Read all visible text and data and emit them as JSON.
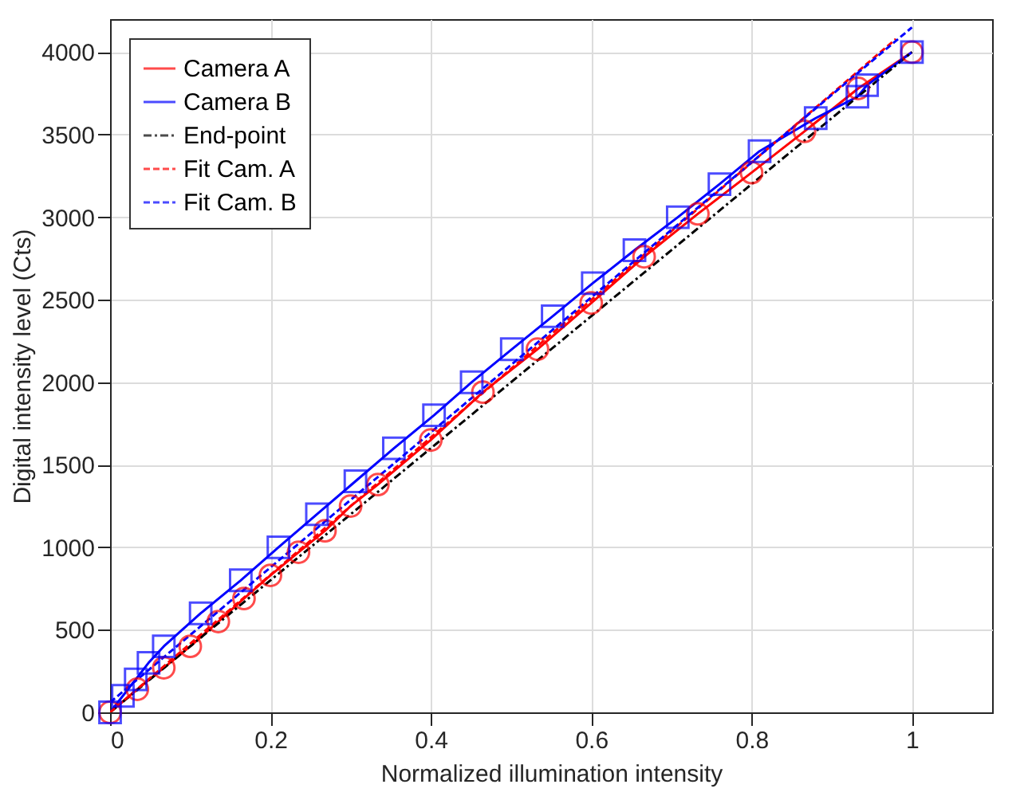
{
  "chart_data": {
    "type": "line",
    "xlabel": "Normalized illumination intensity",
    "ylabel": "Digital intensity level (Cts)",
    "xlim": [
      0,
      1.1
    ],
    "ylim": [
      0,
      4200
    ],
    "xticks": [
      0,
      0.2,
      0.4,
      0.6,
      0.8,
      1
    ],
    "yticks": [
      0,
      500,
      1000,
      1500,
      2000,
      2500,
      3000,
      3500,
      4000
    ],
    "grid": true,
    "legend": "top left",
    "series": [
      {
        "name": "Camera A",
        "color": "#ff0000",
        "marker": "circle",
        "line_style": "solid",
        "x": [
          0,
          0.034,
          0.067,
          0.1,
          0.135,
          0.167,
          0.2,
          0.235,
          0.268,
          0.3,
          0.334,
          0.4,
          0.465,
          0.533,
          0.6,
          0.666,
          0.733,
          0.8,
          0.866,
          0.933,
          1
        ],
        "values": [
          0,
          140,
          270,
          400,
          550,
          690,
          830,
          970,
          1100,
          1250,
          1380,
          1650,
          1940,
          2200,
          2480,
          2760,
          3020,
          3270,
          3520,
          3780,
          4000
        ]
      },
      {
        "name": "Camera B",
        "color": "#0000ff",
        "marker": "square",
        "line_style": "solid",
        "x": [
          0,
          0.016,
          0.032,
          0.048,
          0.067,
          0.113,
          0.163,
          0.21,
          0.258,
          0.306,
          0.354,
          0.404,
          0.451,
          0.501,
          0.552,
          0.602,
          0.654,
          0.708,
          0.76,
          0.81,
          0.88,
          0.932,
          0.944,
          1
        ],
        "values": [
          0,
          100,
          200,
          300,
          400,
          600,
          800,
          1000,
          1200,
          1400,
          1600,
          1800,
          2000,
          2200,
          2400,
          2600,
          2800,
          3000,
          3200,
          3400,
          3600,
          3730,
          3800,
          4000
        ]
      },
      {
        "name": "End-point",
        "color": "#000000",
        "marker": "none",
        "line_style": "dashdot",
        "x": [
          0,
          1
        ],
        "values": [
          0,
          4000
        ]
      },
      {
        "name": "Fit Cam. A",
        "color": "#ff0000",
        "marker": "none",
        "line_style": "dashed",
        "x": [
          0,
          0.98
        ],
        "values": [
          0,
          4080
        ]
      },
      {
        "name": "Fit Cam. B",
        "color": "#0000ff",
        "marker": "none",
        "line_style": "dashed",
        "x": [
          0,
          1
        ],
        "values": [
          60,
          4150
        ]
      }
    ]
  }
}
